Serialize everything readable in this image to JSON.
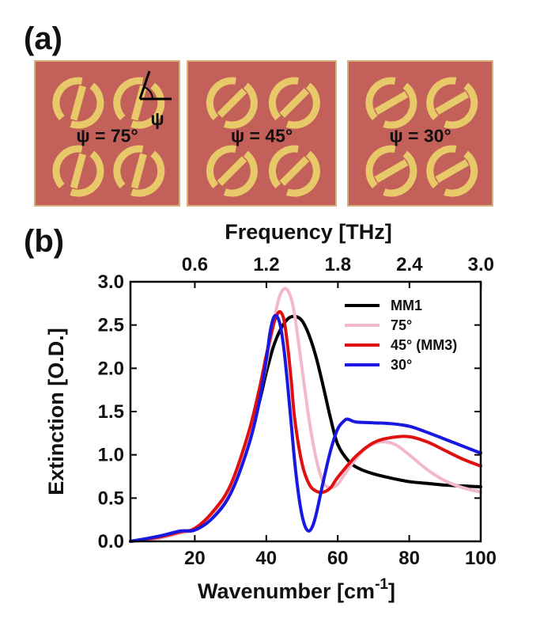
{
  "panel_a": {
    "label": "(a)",
    "tiles": [
      {
        "psi_label": "ψ = 75°",
        "psi_value": 75
      },
      {
        "psi_label": "ψ = 45°",
        "psi_value": 45
      },
      {
        "psi_label": "ψ = 30°",
        "psi_value": 30
      }
    ],
    "angle_symbol": "ψ",
    "colors": {
      "substrate": "#c4605a",
      "metal": "#e8c96a",
      "frame": "#d9b07a"
    }
  },
  "panel_b": {
    "label": "(b)"
  },
  "chart_data": {
    "type": "line",
    "xlabel": "Wavenumber [cm",
    "xlabel_sup": "-1",
    "xlabel_end": "]",
    "ylabel": "Extinction [O.D.]",
    "top_xlabel": "Frequency [THz]",
    "xlim": [
      2,
      100
    ],
    "ylim": [
      0,
      3.0
    ],
    "x_ticks": [
      20,
      40,
      60,
      80,
      100
    ],
    "x_tick_labels": [
      "20",
      "40",
      "60",
      "80",
      "100"
    ],
    "y_ticks": [
      0.0,
      0.5,
      1.0,
      1.5,
      2.0,
      2.5,
      3.0
    ],
    "y_tick_labels": [
      "0.0",
      "0.5",
      "1.0",
      "1.5",
      "2.0",
      "2.5",
      "3.0"
    ],
    "top_ticks_thz": [
      0.6,
      1.2,
      1.8,
      2.4,
      3.0
    ],
    "top_tick_labels": [
      "0.6",
      "1.2",
      "1.8",
      "2.4",
      "3.0"
    ],
    "thz_per_wavenumber": 0.029979,
    "legend_position": "top-right",
    "series": [
      {
        "name": "MM1",
        "color": "#000000",
        "x": [
          2,
          10,
          16,
          20,
          25,
          30,
          35,
          38,
          40,
          42,
          44,
          46,
          48,
          50,
          52,
          54,
          56,
          58,
          60,
          63,
          66,
          70,
          75,
          80,
          85,
          90,
          95,
          100
        ],
        "y": [
          0.0,
          0.04,
          0.1,
          0.14,
          0.3,
          0.6,
          1.15,
          1.6,
          1.95,
          2.25,
          2.45,
          2.57,
          2.6,
          2.55,
          2.38,
          2.12,
          1.78,
          1.42,
          1.12,
          0.93,
          0.84,
          0.78,
          0.73,
          0.69,
          0.67,
          0.65,
          0.64,
          0.63
        ]
      },
      {
        "name": "75°",
        "color": "#f2b8cc",
        "x": [
          2,
          10,
          16,
          20,
          25,
          30,
          35,
          38,
          40,
          42,
          43,
          44,
          45,
          46,
          47,
          48,
          50,
          52,
          54,
          56,
          58,
          60,
          62,
          65,
          68,
          72,
          76,
          80,
          85,
          90,
          95,
          100
        ],
        "y": [
          0.0,
          0.04,
          0.1,
          0.14,
          0.32,
          0.62,
          1.2,
          1.65,
          2.05,
          2.5,
          2.72,
          2.86,
          2.92,
          2.9,
          2.8,
          2.6,
          2.0,
          1.4,
          0.95,
          0.68,
          0.62,
          0.66,
          0.78,
          0.95,
          1.08,
          1.15,
          1.12,
          1.0,
          0.83,
          0.7,
          0.62,
          0.57
        ]
      },
      {
        "name": "45° (MM3)",
        "color": "#e01010",
        "x": [
          2,
          10,
          16,
          20,
          25,
          30,
          35,
          38,
          40,
          42,
          43,
          44,
          45,
          46,
          47,
          48,
          50,
          52,
          54,
          56,
          58,
          60,
          65,
          70,
          75,
          80,
          85,
          90,
          95,
          100
        ],
        "y": [
          0.0,
          0.05,
          0.11,
          0.15,
          0.34,
          0.65,
          1.25,
          1.75,
          2.15,
          2.5,
          2.62,
          2.65,
          2.55,
          2.25,
          1.85,
          1.4,
          0.9,
          0.66,
          0.58,
          0.57,
          0.62,
          0.74,
          0.98,
          1.14,
          1.2,
          1.21,
          1.15,
          1.05,
          0.95,
          0.87
        ]
      },
      {
        "name": "30°",
        "color": "#1818e0",
        "x": [
          2,
          10,
          16,
          20,
          25,
          30,
          35,
          38,
          40,
          41,
          42,
          43,
          44,
          45,
          46,
          47,
          48,
          49,
          50,
          51,
          52,
          53,
          54,
          56,
          58,
          60,
          62,
          63,
          65,
          70,
          75,
          80,
          85,
          90,
          95,
          100
        ],
        "y": [
          0.0,
          0.06,
          0.12,
          0.13,
          0.27,
          0.55,
          1.1,
          1.6,
          2.1,
          2.4,
          2.58,
          2.6,
          2.48,
          2.2,
          1.8,
          1.35,
          0.9,
          0.55,
          0.3,
          0.16,
          0.12,
          0.18,
          0.32,
          0.7,
          1.05,
          1.3,
          1.4,
          1.41,
          1.38,
          1.37,
          1.36,
          1.33,
          1.26,
          1.18,
          1.1,
          1.02
        ]
      }
    ]
  }
}
